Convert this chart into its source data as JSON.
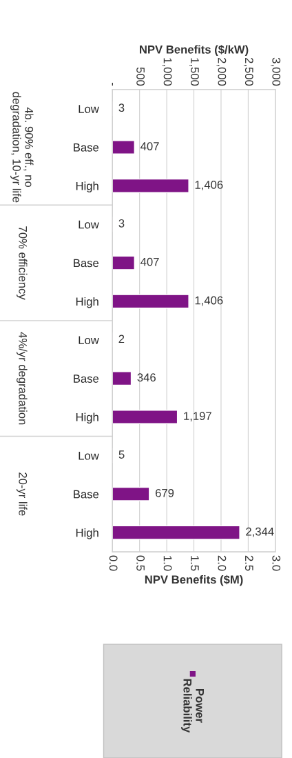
{
  "chart_data": {
    "type": "bar",
    "orientation": "horizontal",
    "categories": [
      "Low",
      "Base",
      "High",
      "Low",
      "Base",
      "High",
      "Low",
      "Base",
      "High",
      "Low",
      "Base",
      "High"
    ],
    "series": [
      {
        "name": "Power Reliability",
        "color": "#7f1486",
        "axis": "x2",
        "values": [
          3,
          407,
          1406,
          3,
          407,
          1406,
          2,
          346,
          1197,
          5,
          679,
          2344
        ],
        "value_labels": [
          "3",
          "407",
          "1,406",
          "3",
          "407",
          "1,406",
          "2",
          "346",
          "1,197",
          "5",
          "679",
          "2,344"
        ]
      }
    ],
    "xlabel": "NPV Benefits ($M)",
    "xlim": [
      0,
      3
    ],
    "xticks": [
      {
        "value": 0,
        "label": "0.0"
      },
      0.5,
      {
        "value": 1,
        "label": "1.0"
      },
      1.5,
      {
        "value": 2,
        "label": "2.0"
      },
      2.5,
      {
        "value": 3,
        "label": "3.0"
      }
    ],
    "x2label": "NPV Benefits ($/kW)",
    "x2lim": [
      0,
      3000
    ],
    "x2ticks": [
      {
        "value": 0,
        "label": "-"
      },
      500,
      {
        "value": 1000,
        "label": "1,000"
      },
      {
        "value": 1500,
        "label": "1,500"
      },
      {
        "value": 2000,
        "label": "2,000"
      },
      {
        "value": 2500,
        "label": "2,500"
      },
      {
        "value": 3000,
        "label": "3,000"
      }
    ],
    "annotations": [
      "4b. 90% eff., no degradation, 10-yr life",
      "70% efficiency",
      "4%/yr degradation",
      "20-yr life"
    ],
    "grid": "x",
    "legend": "bottom"
  }
}
